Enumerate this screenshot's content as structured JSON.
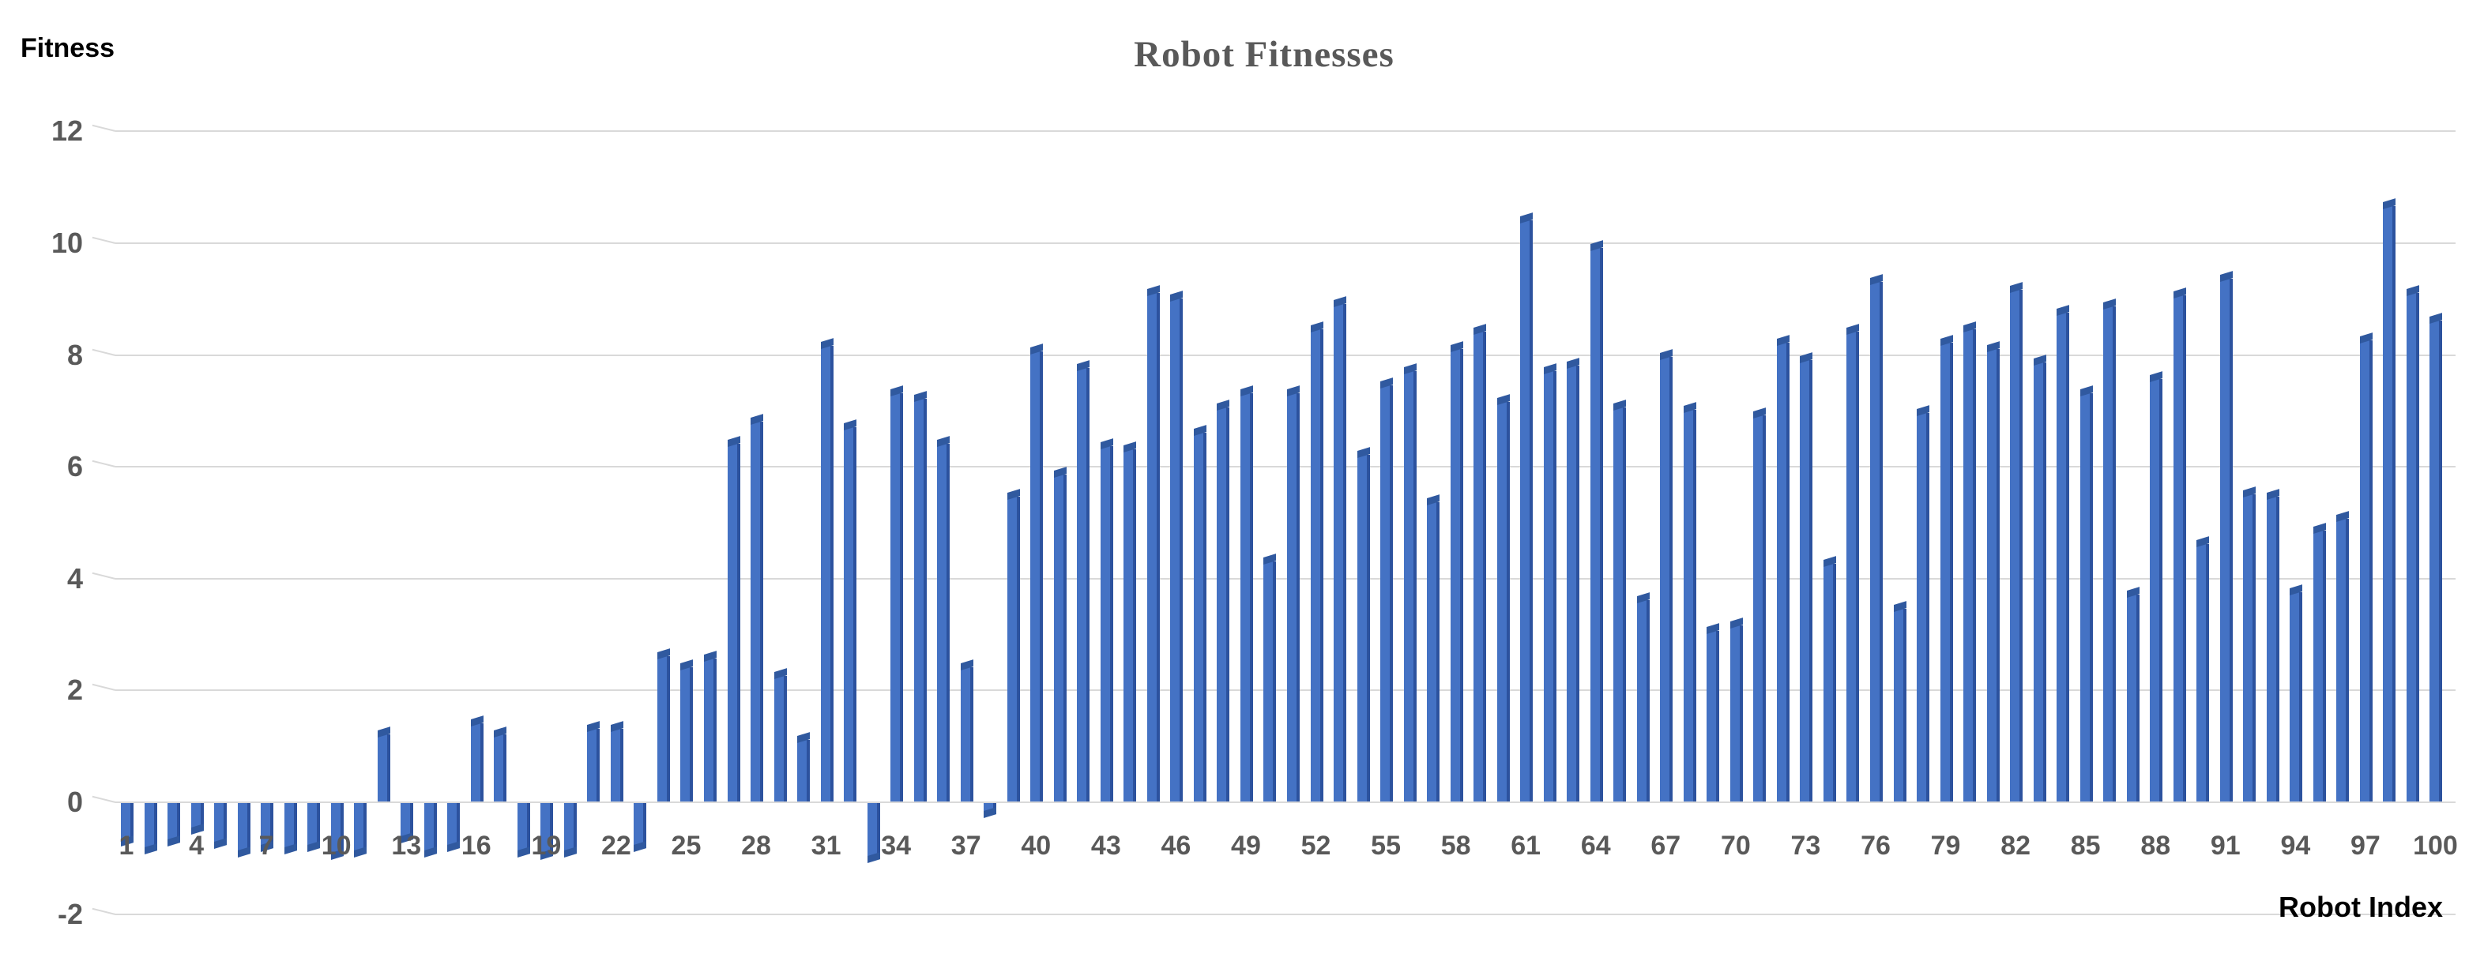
{
  "chart": {
    "title": "Robot Fitnesses",
    "y_axis_title": "Fitness",
    "x_axis_title": "Robot Index"
  },
  "chart_data": {
    "type": "bar",
    "title": "Robot Fitnesses",
    "xlabel": "Robot Index",
    "ylabel": "Fitness",
    "ylim": [
      -2,
      12
    ],
    "y_ticks": [
      12,
      10,
      8,
      6,
      4,
      2,
      0,
      -2
    ],
    "x_tick_labels": [
      "1",
      "4",
      "7",
      "10",
      "13",
      "16",
      "19",
      "22",
      "25",
      "28",
      "31",
      "34",
      "37",
      "40",
      "43",
      "46",
      "49",
      "52",
      "55",
      "58",
      "61",
      "64",
      "67",
      "70",
      "73",
      "76",
      "79",
      "82",
      "85",
      "88",
      "91",
      "94",
      "97",
      "100"
    ],
    "grid": true,
    "legend": false,
    "style": "3d-bar",
    "categories_are_indices_1_to_100": true,
    "values": [
      -0.7,
      -0.85,
      -0.7,
      -0.5,
      -0.75,
      -0.9,
      -0.8,
      -0.85,
      -0.8,
      -0.95,
      -0.9,
      1.2,
      -0.65,
      -0.9,
      -0.8,
      1.4,
      1.2,
      -0.9,
      -0.95,
      -0.9,
      1.3,
      1.3,
      -0.8,
      2.6,
      2.4,
      2.55,
      6.4,
      6.8,
      2.25,
      1.1,
      8.15,
      6.7,
      -1.0,
      7.3,
      7.2,
      6.4,
      2.4,
      -0.2,
      5.45,
      8.05,
      5.85,
      7.75,
      6.35,
      6.3,
      9.1,
      9.0,
      6.6,
      7.05,
      7.3,
      4.3,
      7.3,
      8.45,
      8.9,
      6.2,
      7.45,
      7.7,
      5.35,
      8.1,
      8.4,
      7.15,
      10.4,
      7.7,
      7.8,
      9.9,
      7.05,
      3.6,
      7.95,
      7.0,
      3.05,
      3.15,
      6.9,
      8.2,
      7.9,
      4.25,
      8.4,
      9.3,
      3.45,
      6.95,
      8.2,
      8.45,
      8.1,
      9.15,
      7.85,
      8.75,
      7.3,
      8.85,
      3.7,
      7.55,
      9.05,
      4.6,
      9.35,
      5.5,
      5.45,
      3.75,
      4.85,
      5.05,
      8.25,
      10.65,
      9.1,
      8.6
    ],
    "colors": {
      "bar_front": "#4472C4",
      "bar_side": "#2C529E",
      "bar_cap": "#30599F",
      "gridline": "#D9D9D9",
      "tick_label": "#595959",
      "title": "#595959",
      "axis_title": "#000000",
      "background": "#FFFFFF"
    }
  }
}
